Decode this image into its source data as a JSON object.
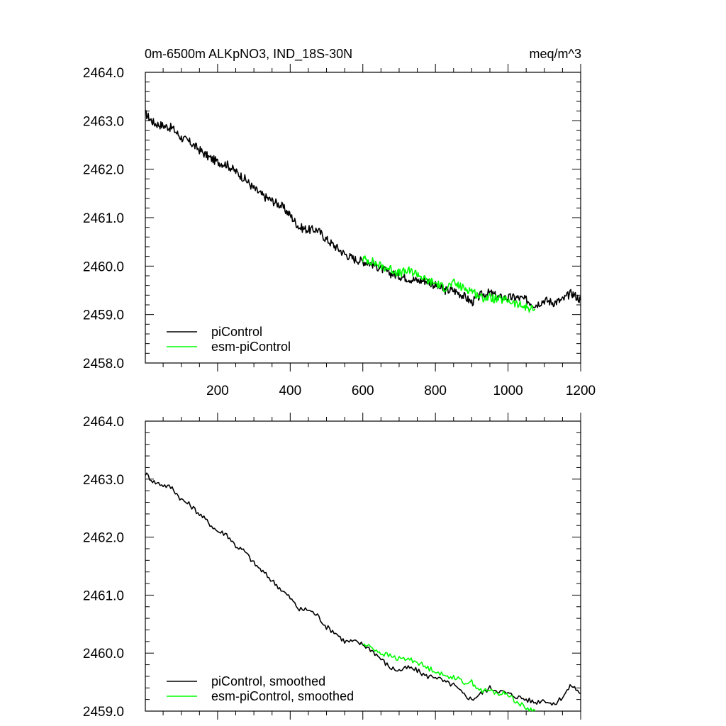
{
  "chart_data": [
    {
      "type": "line",
      "title": "0m-6500m ALKpNO3, IND_18S-30N",
      "units": "meq/m^3",
      "xlabel": "",
      "ylabel": "",
      "xlim": [
        1,
        1200
      ],
      "ylim": [
        2458.0,
        2464.0
      ],
      "xticks": [
        200,
        400,
        600,
        800,
        1000,
        1200
      ],
      "xtick_labels": [
        "200",
        "400",
        "600",
        "800",
        "1000",
        "1200"
      ],
      "yticks": [
        2458,
        2459,
        2460,
        2461,
        2462,
        2463,
        2464
      ],
      "ytick_labels": [
        "2458.0",
        "2459.0",
        "2460.0",
        "2461.0",
        "2462.0",
        "2463.0",
        "2464.0"
      ],
      "legend_position": "bottom-left",
      "series": [
        {
          "name": "piControl",
          "color": "#000000",
          "x": [
            1,
            25,
            50,
            75,
            100,
            125,
            150,
            175,
            200,
            225,
            250,
            275,
            300,
            325,
            350,
            375,
            400,
            425,
            450,
            475,
            500,
            525,
            550,
            575,
            600,
            625,
            650,
            675,
            700,
            725,
            750,
            775,
            800,
            825,
            850,
            875,
            900,
            925,
            950,
            975,
            1000,
            1025,
            1050,
            1075,
            1100,
            1125,
            1150,
            1175,
            1200
          ],
          "values": [
            2463.15,
            2462.95,
            2462.9,
            2462.85,
            2462.65,
            2462.55,
            2462.4,
            2462.25,
            2462.15,
            2462.1,
            2461.95,
            2461.8,
            2461.6,
            2461.45,
            2461.35,
            2461.25,
            2461.05,
            2460.8,
            2460.75,
            2460.75,
            2460.55,
            2460.4,
            2460.25,
            2460.15,
            2460.1,
            2460.05,
            2459.95,
            2459.85,
            2459.8,
            2459.75,
            2459.7,
            2459.7,
            2459.6,
            2459.5,
            2459.5,
            2459.4,
            2459.25,
            2459.4,
            2459.45,
            2459.35,
            2459.35,
            2459.35,
            2459.3,
            2459.2,
            2459.3,
            2459.25,
            2459.3,
            2459.45,
            2459.3
          ]
        },
        {
          "name": "esm-piControl",
          "color": "#00ff00",
          "x": [
            600,
            625,
            650,
            675,
            700,
            725,
            750,
            775,
            800,
            825,
            850,
            875,
            900,
            925,
            950,
            975,
            1000,
            1025,
            1050,
            1075
          ],
          "values": [
            2460.15,
            2460.1,
            2460.0,
            2459.95,
            2459.85,
            2459.9,
            2459.85,
            2459.7,
            2459.65,
            2459.55,
            2459.65,
            2459.55,
            2459.5,
            2459.35,
            2459.35,
            2459.3,
            2459.3,
            2459.2,
            2459.15,
            2459.1
          ]
        }
      ]
    },
    {
      "type": "line",
      "title": "",
      "xlabel": "",
      "ylabel": "",
      "xlim": [
        1,
        1200
      ],
      "ylim": [
        2459.0,
        2464.0
      ],
      "xticks": [
        200,
        400,
        600,
        800,
        1000,
        1200
      ],
      "yticks": [
        2459,
        2460,
        2461,
        2462,
        2463,
        2464
      ],
      "ytick_labels": [
        "2459.0",
        "2460.0",
        "2461.0",
        "2462.0",
        "2463.0",
        "2464.0"
      ],
      "legend_position": "bottom-left",
      "series": [
        {
          "name": "piControl, smoothed",
          "color": "#000000",
          "x": [
            1,
            25,
            50,
            75,
            100,
            125,
            150,
            175,
            200,
            225,
            250,
            275,
            300,
            325,
            350,
            375,
            400,
            425,
            450,
            475,
            500,
            525,
            550,
            575,
            600,
            625,
            650,
            675,
            700,
            725,
            750,
            775,
            800,
            825,
            850,
            875,
            900,
            925,
            950,
            975,
            1000,
            1025,
            1050,
            1075,
            1100,
            1125,
            1150,
            1175,
            1200
          ],
          "values": [
            2463.1,
            2462.95,
            2462.9,
            2462.85,
            2462.65,
            2462.55,
            2462.4,
            2462.25,
            2462.1,
            2462.05,
            2461.85,
            2461.75,
            2461.55,
            2461.4,
            2461.25,
            2461.1,
            2460.95,
            2460.75,
            2460.75,
            2460.65,
            2460.45,
            2460.35,
            2460.2,
            2460.2,
            2460.15,
            2460.05,
            2459.9,
            2459.75,
            2459.7,
            2459.75,
            2459.7,
            2459.6,
            2459.6,
            2459.5,
            2459.45,
            2459.3,
            2459.2,
            2459.3,
            2459.4,
            2459.35,
            2459.3,
            2459.25,
            2459.2,
            2459.15,
            2459.2,
            2459.1,
            2459.25,
            2459.45,
            2459.3
          ]
        },
        {
          "name": "esm-piControl, smoothed",
          "color": "#00ff00",
          "x": [
            600,
            625,
            650,
            675,
            700,
            725,
            750,
            775,
            800,
            825,
            850,
            875,
            900,
            925,
            950,
            975,
            1000,
            1025,
            1050,
            1075
          ],
          "values": [
            2460.15,
            2460.1,
            2460.0,
            2459.95,
            2459.9,
            2459.9,
            2459.85,
            2459.75,
            2459.7,
            2459.6,
            2459.6,
            2459.5,
            2459.5,
            2459.35,
            2459.35,
            2459.3,
            2459.3,
            2459.15,
            2459.05,
            2459.0
          ]
        }
      ]
    }
  ]
}
